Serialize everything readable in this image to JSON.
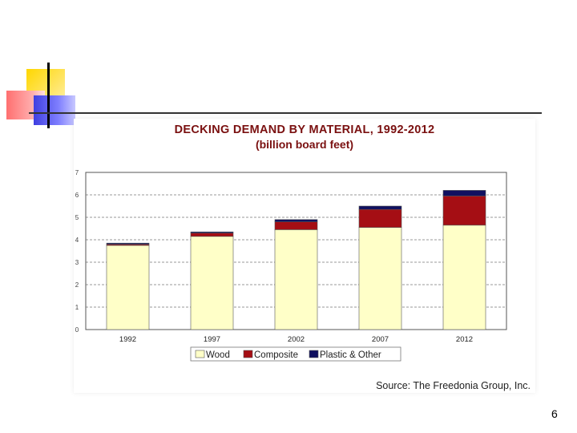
{
  "slide": {
    "source": "Source: The Freedonia Group, Inc.",
    "page_number": "6"
  },
  "chart_data": {
    "type": "bar",
    "stacked": true,
    "title": "DECKING DEMAND BY MATERIAL, 1992-2012",
    "subtitle": "(billion board feet)",
    "xlabel": "",
    "ylabel": "",
    "categories": [
      "1992",
      "1997",
      "2002",
      "2007",
      "2012"
    ],
    "series": [
      {
        "name": "Wood",
        "color": "#ffffc8",
        "values": [
          3.75,
          4.15,
          4.45,
          4.55,
          4.65
        ]
      },
      {
        "name": "Composite",
        "color": "#a50e14",
        "values": [
          0.05,
          0.15,
          0.35,
          0.8,
          1.3
        ]
      },
      {
        "name": "Plastic & Other",
        "color": "#101060",
        "values": [
          0.05,
          0.05,
          0.1,
          0.15,
          0.25
        ]
      }
    ],
    "ylim": [
      0,
      7
    ],
    "yticks": [
      "0",
      "1",
      "2",
      "3",
      "4",
      "5",
      "6",
      "7"
    ],
    "grid": true,
    "legend_position": "bottom"
  }
}
